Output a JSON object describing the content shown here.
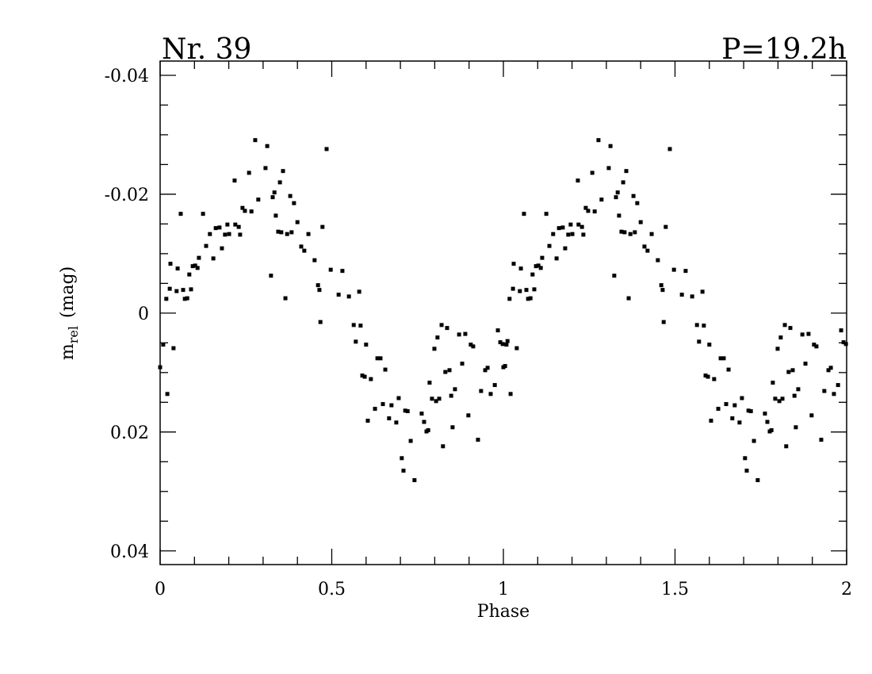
{
  "chart_data": {
    "type": "scatter",
    "title_left": "Nr. 39",
    "title_right": "P=19.2h",
    "xlabel": "Phase",
    "ylabel_main": "m",
    "ylabel_sub": "rel",
    "ylabel_unit": "(mag)",
    "xlim": [
      0,
      2
    ],
    "xticks": [
      0,
      0.5,
      1,
      1.5,
      2
    ],
    "xminorticks": [
      0.1,
      0.2,
      0.3,
      0.4,
      0.6,
      0.7,
      0.8,
      0.9,
      1.1,
      1.2,
      1.3,
      1.4,
      1.6,
      1.7,
      1.8,
      1.9
    ],
    "ylim": [
      -0.0424,
      0.0423
    ],
    "y_inverted": true,
    "yticks": [
      -0.04,
      -0.02,
      0,
      0.02,
      0.04
    ],
    "yminorticks": [
      -0.035,
      -0.03,
      -0.025,
      -0.015,
      -0.01,
      -0.005,
      0.005,
      0.01,
      0.015,
      0.025,
      0.03,
      0.035
    ],
    "grid": false,
    "color": "#000000",
    "x": [
      0.0,
      0.009,
      0.018,
      0.021,
      0.028,
      0.03,
      0.039,
      0.048,
      0.051,
      0.06,
      0.067,
      0.072,
      0.079,
      0.085,
      0.09,
      0.095,
      0.102,
      0.109,
      0.113,
      0.125,
      0.134,
      0.145,
      0.155,
      0.162,
      0.173,
      0.18,
      0.189,
      0.196,
      0.201,
      0.217,
      0.219,
      0.229,
      0.233,
      0.24,
      0.247,
      0.259,
      0.266,
      0.277,
      0.286,
      0.307,
      0.312,
      0.323,
      0.328,
      0.333,
      0.337,
      0.344,
      0.349,
      0.353,
      0.358,
      0.365,
      0.37,
      0.379,
      0.383,
      0.39,
      0.4,
      0.411,
      0.42,
      0.432,
      0.45,
      0.46,
      0.464,
      0.467,
      0.473,
      0.485,
      0.497,
      0.52,
      0.531,
      0.55,
      0.564,
      0.57,
      0.58,
      0.584,
      0.589,
      0.596,
      0.6,
      0.605,
      0.614,
      0.626,
      0.633,
      0.642,
      0.649,
      0.656,
      0.667,
      0.674,
      0.688,
      0.695,
      0.704,
      0.709,
      0.714,
      0.721,
      0.73,
      0.741,
      0.762,
      0.769,
      0.776,
      0.781,
      0.785,
      0.792,
      0.799,
      0.804,
      0.808,
      0.813,
      0.82,
      0.824,
      0.831,
      0.836,
      0.843,
      0.848,
      0.852,
      0.859,
      0.871,
      0.88,
      0.889,
      0.898,
      0.905,
      0.912,
      0.926,
      0.935,
      0.947,
      0.954,
      0.963,
      0.975,
      0.984,
      0.991,
      0.998,
      1.005,
      1.012,
      1.0,
      1.009,
      1.018,
      1.021,
      1.028,
      1.03,
      1.039,
      1.048,
      1.051,
      1.06,
      1.067,
      1.072,
      1.079,
      1.085,
      1.09,
      1.095,
      1.102,
      1.109,
      1.113,
      1.125,
      1.134,
      1.145,
      1.155,
      1.162,
      1.173,
      1.18,
      1.189,
      1.196,
      1.201,
      1.217,
      1.219,
      1.229,
      1.233,
      1.24,
      1.247,
      1.259,
      1.266,
      1.277,
      1.286,
      1.307,
      1.312,
      1.323,
      1.328,
      1.333,
      1.337,
      1.344,
      1.349,
      1.353,
      1.358,
      1.365,
      1.37,
      1.379,
      1.383,
      1.39,
      1.4,
      1.411,
      1.42,
      1.432,
      1.45,
      1.46,
      1.464,
      1.467,
      1.473,
      1.485,
      1.497,
      1.52,
      1.531,
      1.55,
      1.564,
      1.57,
      1.58,
      1.584,
      1.589,
      1.596,
      1.6,
      1.605,
      1.614,
      1.626,
      1.633,
      1.642,
      1.649,
      1.656,
      1.667,
      1.674,
      1.688,
      1.695,
      1.704,
      1.709,
      1.714,
      1.721,
      1.73,
      1.741,
      1.762,
      1.769,
      1.776,
      1.781,
      1.785,
      1.792,
      1.799,
      1.804,
      1.808,
      1.813,
      1.82,
      1.824,
      1.831,
      1.836,
      1.843,
      1.848,
      1.852,
      1.859,
      1.871,
      1.88,
      1.889,
      1.898,
      1.905,
      1.912,
      1.926,
      1.935,
      1.947,
      1.954,
      1.963,
      1.975,
      1.984,
      1.991,
      1.998
    ],
    "values": [
      0.0091,
      0.0053,
      -0.0024,
      0.0136,
      -0.0041,
      -0.0083,
      0.0059,
      -0.0037,
      -0.0075,
      -0.0167,
      -0.0039,
      -0.0024,
      -0.0025,
      -0.0065,
      -0.004,
      -0.0079,
      -0.008,
      -0.0076,
      -0.0093,
      -0.0167,
      -0.0113,
      -0.0133,
      -0.0092,
      -0.0143,
      -0.0144,
      -0.0109,
      -0.0132,
      -0.0149,
      -0.0133,
      -0.0223,
      -0.0149,
      -0.0145,
      -0.0132,
      -0.0177,
      -0.0172,
      -0.0236,
      -0.0171,
      -0.0291,
      -0.0191,
      -0.0244,
      -0.0281,
      -0.0063,
      -0.0195,
      -0.0203,
      -0.0164,
      -0.0137,
      -0.022,
      -0.0136,
      -0.0239,
      -0.0025,
      -0.0133,
      -0.0197,
      -0.0136,
      -0.0185,
      -0.0153,
      -0.0112,
      -0.0105,
      -0.0133,
      -0.0089,
      -0.0047,
      -0.0039,
      0.0015,
      -0.0145,
      -0.0276,
      -0.0073,
      -0.0031,
      -0.0071,
      -0.0028,
      0.002,
      0.0048,
      -0.0036,
      0.0021,
      0.0105,
      0.0107,
      0.0053,
      0.0181,
      0.0111,
      0.0161,
      0.0076,
      0.0076,
      0.0153,
      0.0095,
      0.0177,
      0.0155,
      0.0184,
      0.0143,
      0.0244,
      0.0265,
      0.0164,
      0.0165,
      0.0215,
      0.0281,
      0.0169,
      0.0183,
      0.0199,
      0.0197,
      0.0117,
      0.0144,
      0.006,
      0.0148,
      0.0041,
      0.0144,
      0.002,
      0.0224,
      0.0099,
      0.0025,
      0.0096,
      0.0139,
      0.0192,
      0.0128,
      0.0036,
      0.0085,
      0.0035,
      0.0172,
      0.0053,
      0.0056,
      0.0213,
      0.0131,
      0.0096,
      0.0092,
      0.0136,
      0.0121,
      0.0029,
      0.0049,
      0.0052,
      0.0089,
      0.0047,
      0.0091,
      0.0053,
      -0.0024,
      0.0136,
      -0.0041,
      -0.0083,
      0.0059,
      -0.0037,
      -0.0075,
      -0.0167,
      -0.0039,
      -0.0024,
      -0.0025,
      -0.0065,
      -0.004,
      -0.0079,
      -0.008,
      -0.0076,
      -0.0093,
      -0.0167,
      -0.0113,
      -0.0133,
      -0.0092,
      -0.0143,
      -0.0144,
      -0.0109,
      -0.0132,
      -0.0149,
      -0.0133,
      -0.0223,
      -0.0149,
      -0.0145,
      -0.0132,
      -0.0177,
      -0.0172,
      -0.0236,
      -0.0171,
      -0.0291,
      -0.0191,
      -0.0244,
      -0.0281,
      -0.0063,
      -0.0195,
      -0.0203,
      -0.0164,
      -0.0137,
      -0.022,
      -0.0136,
      -0.0239,
      -0.0025,
      -0.0133,
      -0.0197,
      -0.0136,
      -0.0185,
      -0.0153,
      -0.0112,
      -0.0105,
      -0.0133,
      -0.0089,
      -0.0047,
      -0.0039,
      0.0015,
      -0.0145,
      -0.0276,
      -0.0073,
      -0.0031,
      -0.0071,
      -0.0028,
      0.002,
      0.0048,
      -0.0036,
      0.0021,
      0.0105,
      0.0107,
      0.0053,
      0.0181,
      0.0111,
      0.0161,
      0.0076,
      0.0076,
      0.0153,
      0.0095,
      0.0177,
      0.0155,
      0.0184,
      0.0143,
      0.0244,
      0.0265,
      0.0164,
      0.0165,
      0.0215,
      0.0281,
      0.0169,
      0.0183,
      0.0199,
      0.0197,
      0.0117,
      0.0144,
      0.006,
      0.0148,
      0.0041,
      0.0144,
      0.002,
      0.0224,
      0.0099,
      0.0025,
      0.0096,
      0.0139,
      0.0192,
      0.0128,
      0.0036,
      0.0085,
      0.0035,
      0.0172,
      0.0053,
      0.0056,
      0.0213,
      0.0131,
      0.0096,
      0.0092,
      0.0136,
      0.0121,
      0.0029,
      0.0049,
      0.0052
    ]
  }
}
